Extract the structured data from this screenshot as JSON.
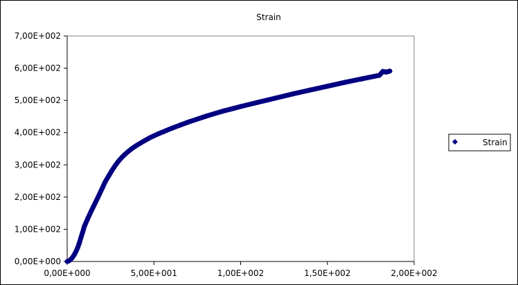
{
  "chart_data": {
    "type": "scatter",
    "title": "Strain",
    "xlabel": "",
    "ylabel": "",
    "xlim": [
      0,
      200
    ],
    "ylim": [
      0,
      700
    ],
    "xticks": [
      0,
      50,
      100,
      150,
      200
    ],
    "xtick_labels": [
      "0,00E+000",
      "5,00E+001",
      "1,00E+002",
      "1,50E+002",
      "2,00E+002"
    ],
    "yticks": [
      0,
      100,
      200,
      300,
      400,
      500,
      600,
      700
    ],
    "ytick_labels": [
      "0,00E+000",
      "1,00E+002",
      "2,00E+002",
      "3,00E+002",
      "4,00E+002",
      "5,00E+002",
      "6,00E+002",
      "7,00E+002"
    ],
    "grid": false,
    "legend": "right",
    "series_color": "#000080",
    "series": [
      {
        "name": "Strain",
        "marker": "diamond",
        "x": [
          0,
          1,
          2,
          3,
          4,
          5,
          6,
          7,
          8,
          9,
          10,
          12,
          14,
          16,
          18,
          20,
          22,
          24,
          26,
          28,
          30,
          32,
          34,
          36,
          38,
          40,
          44,
          48,
          52,
          56,
          60,
          65,
          70,
          75,
          80,
          85,
          90,
          95,
          100,
          110,
          120,
          130,
          140,
          150,
          160,
          170,
          180,
          182,
          184,
          186
        ],
        "y": [
          0,
          2,
          6,
          12,
          20,
          30,
          42,
          57,
          75,
          92,
          110,
          135,
          158,
          180,
          202,
          225,
          248,
          266,
          284,
          300,
          314,
          326,
          336,
          345,
          353,
          360,
          373,
          385,
          395,
          404,
          413,
          423,
          433,
          442,
          451,
          459,
          467,
          474,
          481,
          494,
          507,
          520,
          532,
          544,
          556,
          567,
          578,
          590,
          588,
          591
        ]
      }
    ]
  }
}
